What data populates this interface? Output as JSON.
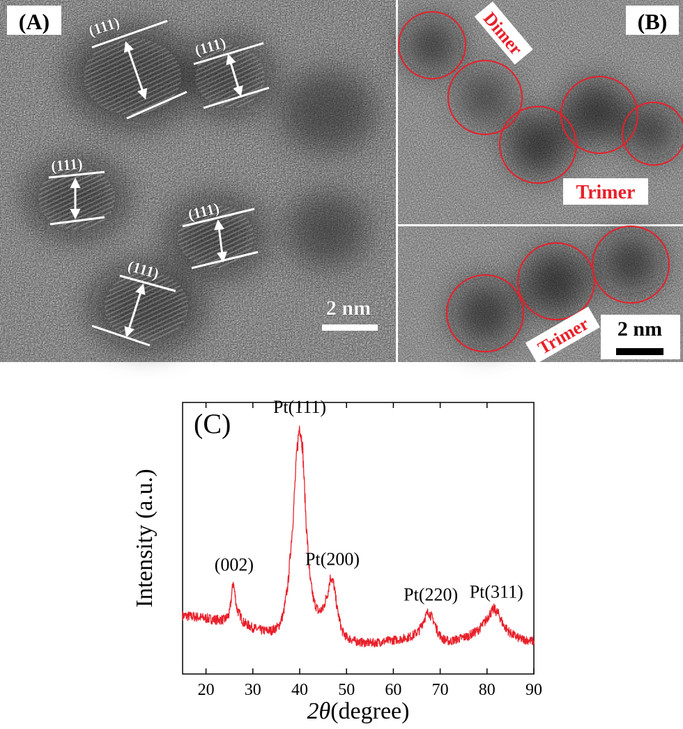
{
  "panel_a": {
    "label": "(A)",
    "plane_labels": [
      "(111)",
      "(111)",
      "(111)",
      "(111)",
      "(111)"
    ],
    "scale_bar": "2 nm"
  },
  "panel_b": {
    "label": "(B)",
    "dimer_label": "Dimer",
    "trimer_label_top": "Trimer",
    "trimer_label_bottom": "Trimer",
    "scale_bar": "2 nm"
  },
  "colors": {
    "annotation_red": "#e8202a",
    "trace_red": "#e8202a",
    "plane_white": "#ffffff"
  },
  "chart_data": {
    "type": "line",
    "panel_label": "(C)",
    "xlabel_symbol": "2θ",
    "xlabel_unit": "(degree)",
    "ylabel": "Intensity (a.u.)",
    "xlim": [
      15,
      90
    ],
    "ylim": [
      0,
      1
    ],
    "x_ticks": [
      20,
      30,
      40,
      50,
      60,
      70,
      80,
      90
    ],
    "y_ticks_labeled": false,
    "grid": false,
    "legend": "none",
    "series": [
      {
        "color": "#e8202a",
        "x": [
          15,
          18,
          20,
          22,
          24,
          25,
          25.8,
          26.6,
          28,
          30,
          32,
          34,
          35.5,
          36.5,
          37.5,
          38.5,
          39.4,
          40,
          40.6,
          41.4,
          42.2,
          43,
          44,
          45,
          46,
          46.6,
          47.3,
          48,
          49,
          50,
          52,
          54,
          56,
          58,
          60,
          62,
          64,
          65.5,
          66.5,
          67.5,
          68.5,
          69.5,
          70.5,
          72,
          74,
          76,
          78,
          79.5,
          80.5,
          81.5,
          82.5,
          83.5,
          85,
          87,
          90
        ],
        "y": [
          0.215,
          0.21,
          0.205,
          0.2,
          0.2,
          0.22,
          0.34,
          0.24,
          0.19,
          0.17,
          0.16,
          0.16,
          0.175,
          0.22,
          0.33,
          0.55,
          0.82,
          0.92,
          0.84,
          0.55,
          0.35,
          0.27,
          0.23,
          0.24,
          0.3,
          0.36,
          0.33,
          0.24,
          0.16,
          0.135,
          0.12,
          0.115,
          0.115,
          0.12,
          0.125,
          0.13,
          0.14,
          0.16,
          0.2,
          0.23,
          0.2,
          0.155,
          0.13,
          0.12,
          0.13,
          0.14,
          0.16,
          0.19,
          0.22,
          0.24,
          0.22,
          0.18,
          0.15,
          0.13,
          0.12
        ]
      }
    ],
    "annotations": [
      {
        "text": "(002)",
        "x": 26
      },
      {
        "text": "Pt(111)",
        "x": 40
      },
      {
        "text": "Pt(200)",
        "x": 47
      },
      {
        "text": "Pt(220)",
        "x": 68
      },
      {
        "text": "Pt(311)",
        "x": 82
      }
    ]
  }
}
